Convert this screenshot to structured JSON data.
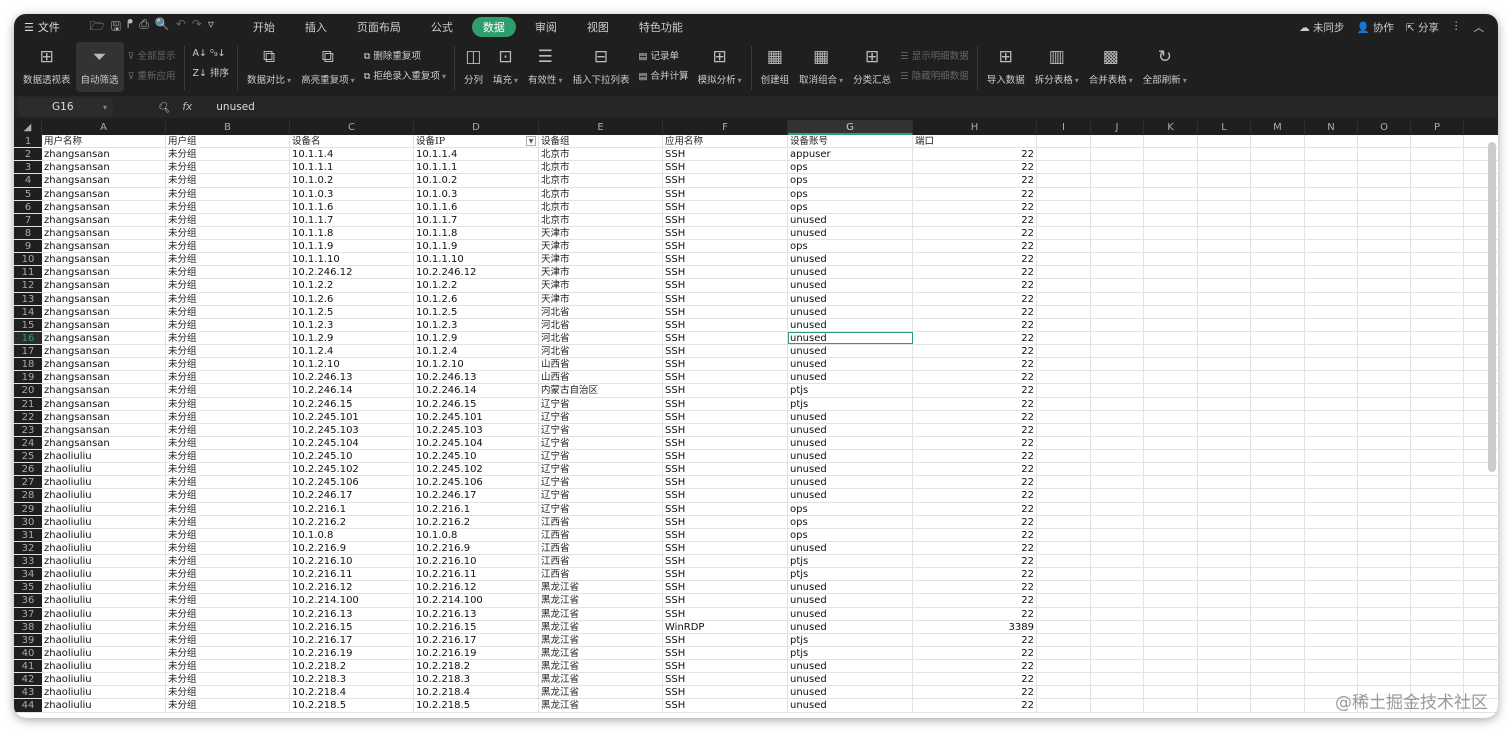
{
  "topbar": {
    "menu": "文件",
    "tabs": [
      "开始",
      "插入",
      "页面布局",
      "公式",
      "数据",
      "审阅",
      "视图",
      "特色功能"
    ],
    "active_tab": "数据",
    "sync": "未同步",
    "collab": "协作",
    "share": "分享"
  },
  "ribbon": {
    "pivot": "数据透视表",
    "autofilter": "自动筛选",
    "show_all": "全部显示",
    "reapply": "重新应用",
    "sort": "排序",
    "compare": "数据对比",
    "highlight_dup": "高亮重复项",
    "delete_dup": "删除重复项",
    "reject_dup": "拒绝录入重复项",
    "split_col": "分列",
    "fill": "填充",
    "validity": "有效性",
    "insert_dropdown": "插入下拉列表",
    "record_form": "记录单",
    "consolidate": "合并计算",
    "what_if": "模拟分析",
    "create_group": "创建组",
    "ungroup": "取消组合",
    "subtotal": "分类汇总",
    "show_detail": "显示明细数据",
    "hide_detail": "隐藏明细数据",
    "import": "导入数据",
    "split_table": "拆分表格",
    "merge_table": "合并表格",
    "refresh_all": "全部刷新"
  },
  "formula_bar": {
    "cell_ref": "G16",
    "fx": "fx",
    "value": "unused"
  },
  "accent": "#2e9e6b",
  "sheet": {
    "columns": [
      "A",
      "B",
      "C",
      "D",
      "E",
      "F",
      "G",
      "H",
      "I",
      "J",
      "K",
      "L",
      "M",
      "N",
      "O",
      "P"
    ],
    "selected_column": "G",
    "selected_row": 16,
    "header": [
      "用户名称",
      "用户组",
      "设备名",
      "设备IP",
      "设备组",
      "应用名称",
      "设备账号",
      "端口"
    ],
    "rows": [
      [
        "zhangsansan",
        "未分组",
        "10.1.1.4",
        "10.1.1.4",
        "北京市",
        "SSH",
        "appuser",
        "22"
      ],
      [
        "zhangsansan",
        "未分组",
        "10.1.1.1",
        "10.1.1.1",
        "北京市",
        "SSH",
        "ops",
        "22"
      ],
      [
        "zhangsansan",
        "未分组",
        "10.1.0.2",
        "10.1.0.2",
        "北京市",
        "SSH",
        "ops",
        "22"
      ],
      [
        "zhangsansan",
        "未分组",
        "10.1.0.3",
        "10.1.0.3",
        "北京市",
        "SSH",
        "ops",
        "22"
      ],
      [
        "zhangsansan",
        "未分组",
        "10.1.1.6",
        "10.1.1.6",
        "北京市",
        "SSH",
        "ops",
        "22"
      ],
      [
        "zhangsansan",
        "未分组",
        "10.1.1.7",
        "10.1.1.7",
        "北京市",
        "SSH",
        "unused",
        "22"
      ],
      [
        "zhangsansan",
        "未分组",
        "10.1.1.8",
        "10.1.1.8",
        "天津市",
        "SSH",
        "unused",
        "22"
      ],
      [
        "zhangsansan",
        "未分组",
        "10.1.1.9",
        "10.1.1.9",
        "天津市",
        "SSH",
        "ops",
        "22"
      ],
      [
        "zhangsansan",
        "未分组",
        "10.1.1.10",
        "10.1.1.10",
        "天津市",
        "SSH",
        "unused",
        "22"
      ],
      [
        "zhangsansan",
        "未分组",
        "10.2.246.12",
        "10.2.246.12",
        "天津市",
        "SSH",
        "unused",
        "22"
      ],
      [
        "zhangsansan",
        "未分组",
        "10.1.2.2",
        "10.1.2.2",
        "天津市",
        "SSH",
        "unused",
        "22"
      ],
      [
        "zhangsansan",
        "未分组",
        "10.1.2.6",
        "10.1.2.6",
        "天津市",
        "SSH",
        "unused",
        "22"
      ],
      [
        "zhangsansan",
        "未分组",
        "10.1.2.5",
        "10.1.2.5",
        "河北省",
        "SSH",
        "unused",
        "22"
      ],
      [
        "zhangsansan",
        "未分组",
        "10.1.2.3",
        "10.1.2.3",
        "河北省",
        "SSH",
        "unused",
        "22"
      ],
      [
        "zhangsansan",
        "未分组",
        "10.1.2.9",
        "10.1.2.9",
        "河北省",
        "SSH",
        "unused",
        "22"
      ],
      [
        "zhangsansan",
        "未分组",
        "10.1.2.4",
        "10.1.2.4",
        "河北省",
        "SSH",
        "unused",
        "22"
      ],
      [
        "zhangsansan",
        "未分组",
        "10.1.2.10",
        "10.1.2.10",
        "山西省",
        "SSH",
        "unused",
        "22"
      ],
      [
        "zhangsansan",
        "未分组",
        "10.2.246.13",
        "10.2.246.13",
        "山西省",
        "SSH",
        "unused",
        "22"
      ],
      [
        "zhangsansan",
        "未分组",
        "10.2.246.14",
        "10.2.246.14",
        "内蒙古自治区",
        "SSH",
        "ptjs",
        "22"
      ],
      [
        "zhangsansan",
        "未分组",
        "10.2.246.15",
        "10.2.246.15",
        "辽宁省",
        "SSH",
        "ptjs",
        "22"
      ],
      [
        "zhangsansan",
        "未分组",
        "10.2.245.101",
        "10.2.245.101",
        "辽宁省",
        "SSH",
        "unused",
        "22"
      ],
      [
        "zhangsansan",
        "未分组",
        "10.2.245.103",
        "10.2.245.103",
        "辽宁省",
        "SSH",
        "unused",
        "22"
      ],
      [
        "zhangsansan",
        "未分组",
        "10.2.245.104",
        "10.2.245.104",
        "辽宁省",
        "SSH",
        "unused",
        "22"
      ],
      [
        "zhaoliuliu",
        "未分组",
        "10.2.245.10",
        "10.2.245.10",
        "辽宁省",
        "SSH",
        "unused",
        "22"
      ],
      [
        "zhaoliuliu",
        "未分组",
        "10.2.245.102",
        "10.2.245.102",
        "辽宁省",
        "SSH",
        "unused",
        "22"
      ],
      [
        "zhaoliuliu",
        "未分组",
        "10.2.245.106",
        "10.2.245.106",
        "辽宁省",
        "SSH",
        "unused",
        "22"
      ],
      [
        "zhaoliuliu",
        "未分组",
        "10.2.246.17",
        "10.2.246.17",
        "辽宁省",
        "SSH",
        "unused",
        "22"
      ],
      [
        "zhaoliuliu",
        "未分组",
        "10.2.216.1",
        "10.2.216.1",
        "辽宁省",
        "SSH",
        "ops",
        "22"
      ],
      [
        "zhaoliuliu",
        "未分组",
        "10.2.216.2",
        "10.2.216.2",
        "江西省",
        "SSH",
        "ops",
        "22"
      ],
      [
        "zhaoliuliu",
        "未分组",
        "10.1.0.8",
        "10.1.0.8",
        "江西省",
        "SSH",
        "ops",
        "22"
      ],
      [
        "zhaoliuliu",
        "未分组",
        "10.2.216.9",
        "10.2.216.9",
        "江西省",
        "SSH",
        "unused",
        "22"
      ],
      [
        "zhaoliuliu",
        "未分组",
        "10.2.216.10",
        "10.2.216.10",
        "江西省",
        "SSH",
        "ptjs",
        "22"
      ],
      [
        "zhaoliuliu",
        "未分组",
        "10.2.216.11",
        "10.2.216.11",
        "江西省",
        "SSH",
        "ptjs",
        "22"
      ],
      [
        "zhaoliuliu",
        "未分组",
        "10.2.216.12",
        "10.2.216.12",
        "黑龙江省",
        "SSH",
        "unused",
        "22"
      ],
      [
        "zhaoliuliu",
        "未分组",
        "10.2.214.100",
        "10.2.214.100",
        "黑龙江省",
        "SSH",
        "unused",
        "22"
      ],
      [
        "zhaoliuliu",
        "未分组",
        "10.2.216.13",
        "10.2.216.13",
        "黑龙江省",
        "SSH",
        "unused",
        "22"
      ],
      [
        "zhaoliuliu",
        "未分组",
        "10.2.216.15",
        "10.2.216.15",
        "黑龙江省",
        "WinRDP",
        "unused",
        "3389"
      ],
      [
        "zhaoliuliu",
        "未分组",
        "10.2.216.17",
        "10.2.216.17",
        "黑龙江省",
        "SSH",
        "ptjs",
        "22"
      ],
      [
        "zhaoliuliu",
        "未分组",
        "10.2.216.19",
        "10.2.216.19",
        "黑龙江省",
        "SSH",
        "ptjs",
        "22"
      ],
      [
        "zhaoliuliu",
        "未分组",
        "10.2.218.2",
        "10.2.218.2",
        "黑龙江省",
        "SSH",
        "unused",
        "22"
      ],
      [
        "zhaoliuliu",
        "未分组",
        "10.2.218.3",
        "10.2.218.3",
        "黑龙江省",
        "SSH",
        "unused",
        "22"
      ],
      [
        "zhaoliuliu",
        "未分组",
        "10.2.218.4",
        "10.2.218.4",
        "黑龙江省",
        "SSH",
        "unused",
        "22"
      ],
      [
        "zhaoliuliu",
        "未分组",
        "10.2.218.5",
        "10.2.218.5",
        "黑龙江省",
        "SSH",
        "unused",
        "22"
      ]
    ]
  },
  "watermark": "@稀土掘金技术社区"
}
